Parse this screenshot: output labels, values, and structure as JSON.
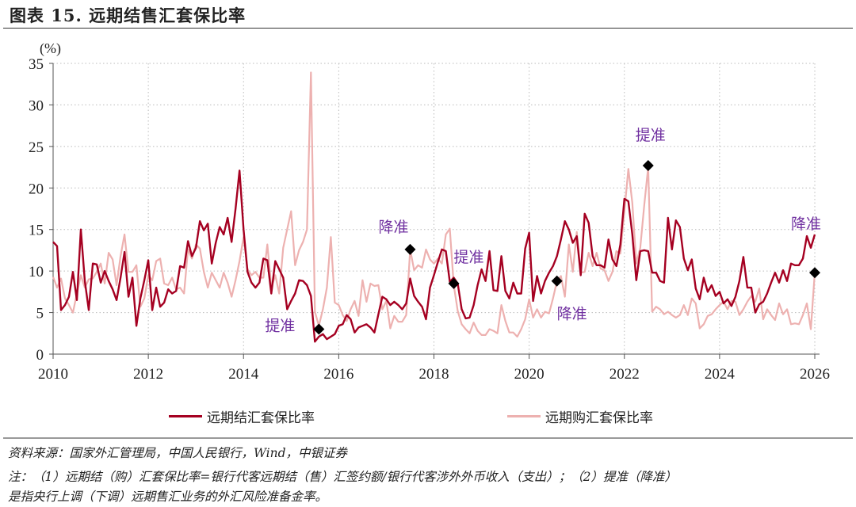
{
  "title": "图表 15. 远期结售汇套保比率",
  "source": "资料来源：国家外汇管理局，中国人民银行，Wind，中银证券",
  "note_line1": "注：（1）远期结（购）汇套保比率=银行代客远期结（售）汇签约额/银行代客涉外外币收入（支出）；（2）提准（降准）",
  "note_line2": "是指央行上调（下调）远期售汇业务的外汇风险准备金率。",
  "chart_data": {
    "type": "line",
    "ylabel": "(%)",
    "ylim": [
      0,
      35
    ],
    "yticks": [
      "0",
      "5",
      "10",
      "15",
      "20",
      "25",
      "30",
      "35"
    ],
    "xlim": [
      "2010-01",
      "2026-01"
    ],
    "xticks": [
      "2010",
      "2012",
      "2014",
      "2016",
      "2018",
      "2020",
      "2022",
      "2024",
      "2026"
    ],
    "x_start": "2010-01",
    "x_frequency": "monthly",
    "grid": true,
    "legend_position": "bottom",
    "series": [
      {
        "name": "远期结汇套保比率",
        "color": "#A50021",
        "values": [
          13.5,
          13,
          5.3,
          5.9,
          6.9,
          9.9,
          6.5,
          15,
          8.8,
          5.3,
          10.9,
          10.8,
          8.6,
          10,
          8.8,
          7.8,
          6.5,
          9.2,
          12.3,
          6.9,
          9.2,
          3.4,
          6.7,
          8.9,
          11.3,
          5.3,
          8,
          5.7,
          6.2,
          7.8,
          7.3,
          7.6,
          10.6,
          10.4,
          13.6,
          11.8,
          12.8,
          16,
          14.9,
          15.7,
          10.9,
          13.4,
          15.3,
          14.4,
          16.4,
          13.5,
          17.5,
          22.1,
          15,
          9.9,
          8.6,
          8,
          8.6,
          11.5,
          11.3,
          7.3,
          11.2,
          10.2,
          9.2,
          5.4,
          6.4,
          7.3,
          8.9,
          8.8,
          8.3,
          7,
          1.5,
          2.1,
          2.4,
          1.8,
          2.1,
          2.4,
          3.4,
          3.6,
          4.7,
          4.2,
          2.6,
          3.2,
          3.4,
          3.6,
          3.2,
          2.6,
          4.8,
          6.9,
          6.6,
          5.9,
          6.3,
          5.9,
          5.4,
          6.1,
          9.1,
          7,
          6.3,
          5.7,
          4.2,
          8,
          9.5,
          11.1,
          12.6,
          12.4,
          8.7,
          9.2,
          8.5,
          5.4,
          4.3,
          4.4,
          5.9,
          8.3,
          10.2,
          8.8,
          12.4,
          7.7,
          7.6,
          11.8,
          7.6,
          6.7,
          8.6,
          7.3,
          7.3,
          12.7,
          14.6,
          6.4,
          9.4,
          7.3,
          8.8,
          9.8,
          10.6,
          11.8,
          13.8,
          16,
          15,
          13.4,
          14.2,
          9.5,
          16.9,
          15.8,
          11.8,
          10.7,
          10.7,
          10.4,
          13.8,
          11.4,
          10.6,
          13.2,
          18.7,
          18.4,
          14.4,
          8.9,
          12.4,
          12.5,
          12.4,
          9.8,
          9.8,
          8.8,
          8.6,
          16.4,
          12.6,
          16.1,
          15.3,
          11.5,
          10.1,
          11.4,
          7.9,
          6.6,
          9.2,
          7.5,
          8.3,
          7,
          7.5,
          6.1,
          6.6,
          5.8,
          6.9,
          8.8,
          11.7,
          8,
          8,
          5,
          6,
          6.3,
          7.3,
          8.6,
          9.8,
          8.6,
          10.1,
          8.8,
          10.9,
          10.7,
          10.7,
          11.5,
          14.2,
          12.8,
          14.4
        ]
      },
      {
        "name": "远期购汇套保比率",
        "color": "#EDB1B0",
        "values": [
          9.3,
          8,
          9.1,
          6.7,
          5.9,
          5,
          7.3,
          9.5,
          8,
          9,
          9.1,
          9.9,
          10.9,
          8.5,
          12.2,
          11.4,
          8.3,
          11.8,
          14.4,
          9.9,
          9.9,
          10.7,
          5.7,
          6.7,
          9.5,
          8.9,
          11.2,
          11.5,
          8.5,
          8.3,
          9.2,
          7.8,
          8,
          7.3,
          12.6,
          11.5,
          13.2,
          12.7,
          9.9,
          8,
          9.8,
          8.9,
          8,
          9.8,
          8.6,
          6.9,
          8.9,
          11.2,
          14.1,
          10.2,
          9.5,
          9.9,
          9.2,
          9.2,
          13.2,
          8,
          9.5,
          7.3,
          12.8,
          15,
          17.2,
          10.7,
          12.5,
          13.5,
          15,
          33.9,
          5.1,
          3.4,
          5.4,
          8,
          14.1,
          6.2,
          5.9,
          4.7,
          4,
          5.4,
          6.4,
          4.6,
          8.9,
          6.3,
          8.5,
          8.2,
          8.3,
          5.4,
          6.4,
          3.1,
          4.6,
          3.9,
          3.9,
          4.7,
          12.6,
          10.1,
          10.7,
          10.4,
          12.6,
          11.4,
          10.9,
          11.5,
          10.9,
          14.4,
          15.1,
          8.3,
          5.2,
          3.6,
          3,
          2.5,
          3.8,
          2.8,
          2.3,
          2.3,
          3,
          2.8,
          2.5,
          5.9,
          4,
          2.6,
          2.6,
          2.1,
          3,
          4.2,
          6.6,
          4.4,
          5.4,
          4.4,
          5.1,
          4.9,
          6.7,
          8.8,
          9.4,
          6.9,
          13.2,
          9.9,
          14.7,
          9.8,
          9.9,
          12.2,
          10.6,
          12.2,
          10.3,
          10.1,
          8.8,
          9.9,
          12.4,
          12.1,
          17.2,
          22.3,
          18.2,
          10.9,
          12.8,
          17.9,
          22.5,
          5.1,
          5.7,
          5.4,
          4.8,
          5.1,
          4.7,
          4.4,
          4.7,
          5.9,
          4.7,
          6.7,
          6.1,
          3.1,
          3.6,
          4.6,
          4.8,
          5.4,
          5.9,
          6.3,
          5.4,
          6.4,
          6.3,
          4.7,
          5.4,
          6.3,
          7,
          6.3,
          7.9,
          4.2,
          5.4,
          4.7,
          4.1,
          6.1,
          4.8,
          5.4,
          3.6,
          3.7,
          3.6,
          4.7,
          6.1,
          3,
          9.8
        ]
      }
    ],
    "annotations": [
      {
        "date": "2015-08",
        "value": 3.0,
        "label": "提准",
        "marker": "diamond"
      },
      {
        "date": "2017-07",
        "value": 12.6,
        "label": "降准",
        "marker": "diamond"
      },
      {
        "date": "2018-06",
        "value": 8.5,
        "label": "提准",
        "marker": "diamond"
      },
      {
        "date": "2020-08",
        "value": 8.8,
        "label": "降准",
        "marker": "diamond"
      },
      {
        "date": "2022-07",
        "value": 22.7,
        "label": "提准",
        "marker": "diamond"
      },
      {
        "date": "2026-01",
        "value": 9.8,
        "label": "降准",
        "marker": "diamond"
      }
    ],
    "annotation_color": "#7030A0"
  }
}
